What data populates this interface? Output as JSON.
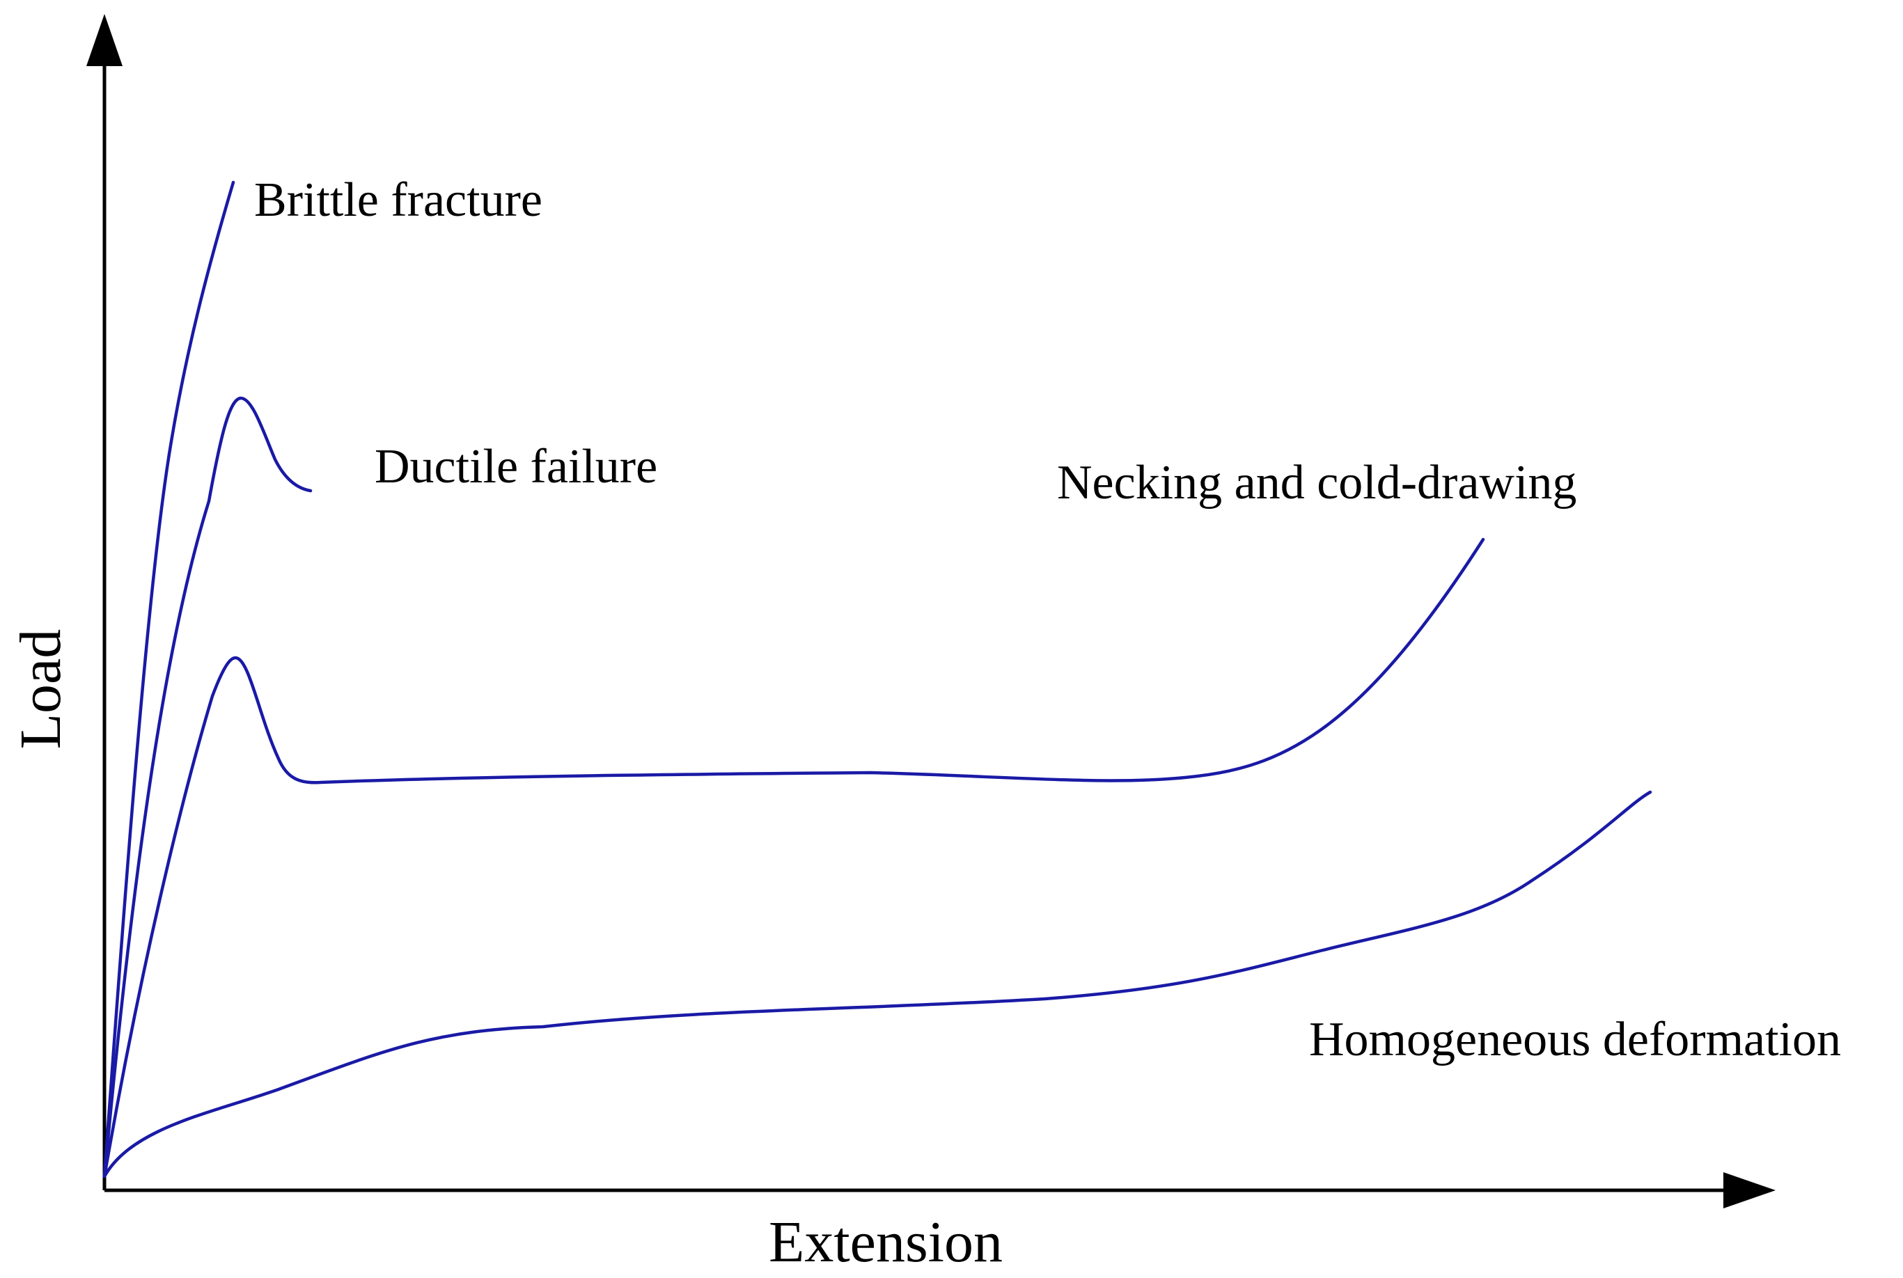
{
  "axes": {
    "x_label": "Extension",
    "y_label": "Load"
  },
  "curve_color": "#1a1aa6",
  "curves": [
    {
      "id": "brittle-fracture",
      "label": "Brittle fracture"
    },
    {
      "id": "ductile-failure",
      "label": "Ductile failure"
    },
    {
      "id": "necking-cold-drawing",
      "label": "Necking and cold-drawing"
    },
    {
      "id": "homogeneous-deformation",
      "label": "Homogeneous deformation"
    }
  ]
}
